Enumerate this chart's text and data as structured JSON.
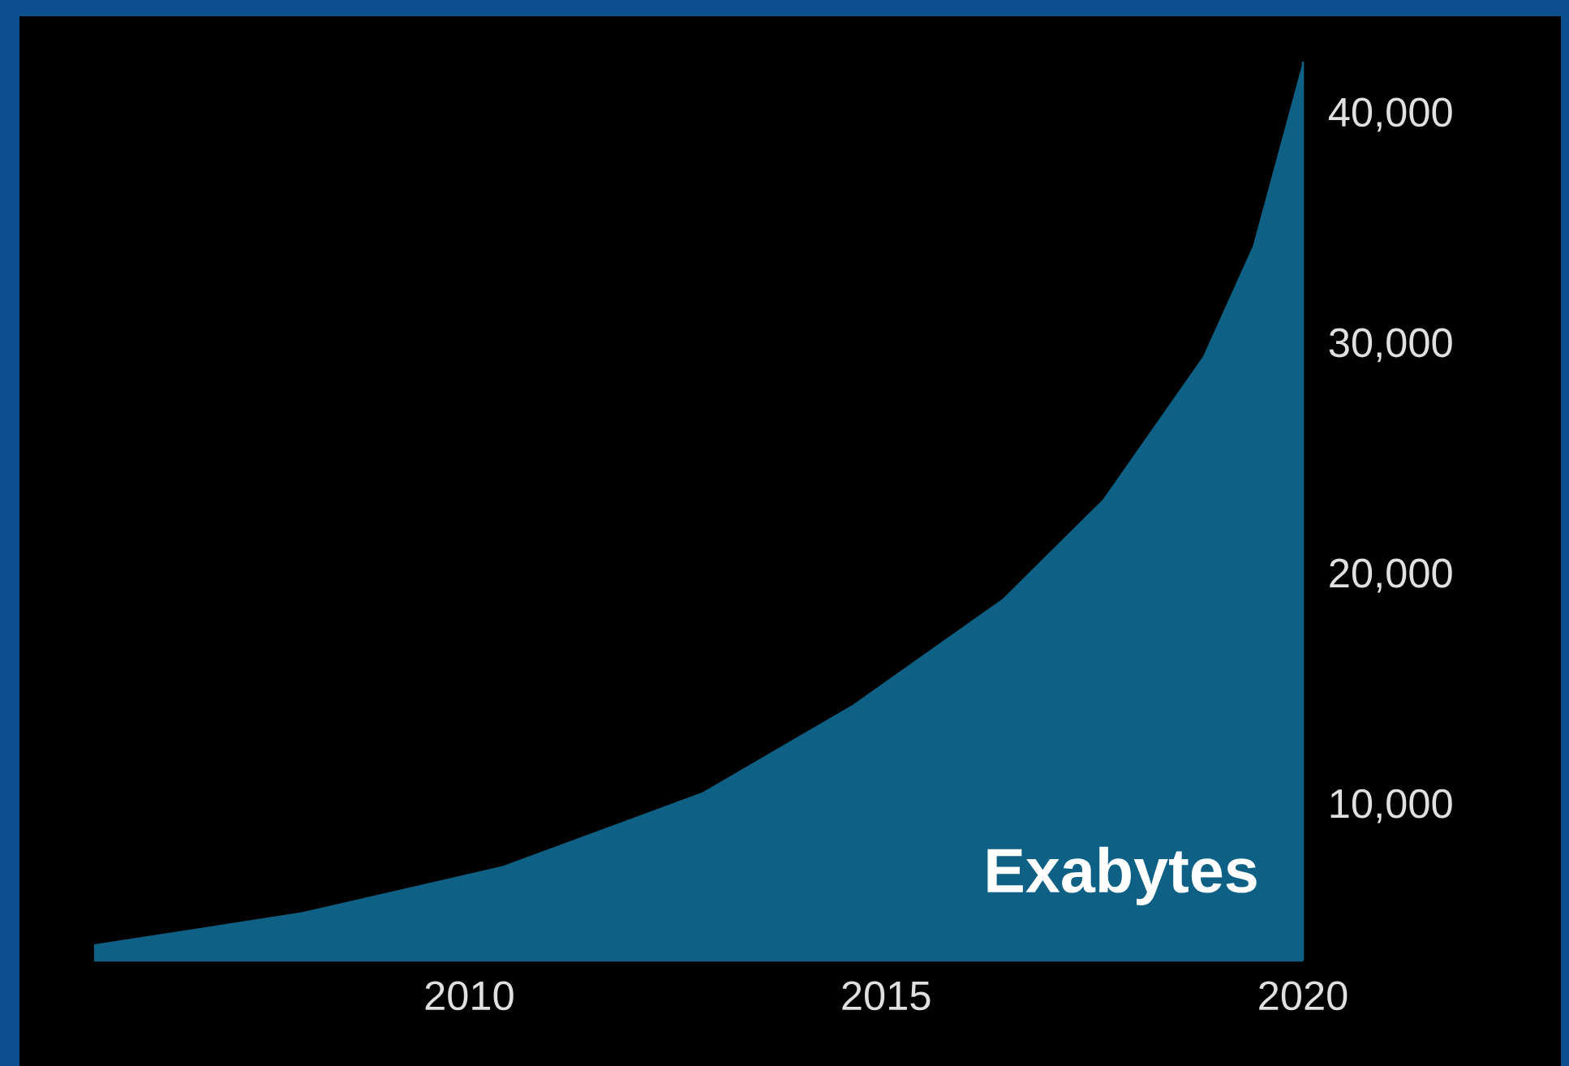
{
  "chart_data": {
    "type": "area",
    "x": [
      2005.5,
      2008,
      2010.4,
      2012.8,
      2014.6,
      2016.4,
      2017.6,
      2018.8,
      2019.4,
      2020
    ],
    "values": [
      4000,
      5400,
      7400,
      10600,
      14400,
      19000,
      23300,
      29500,
      34300,
      42300
    ],
    "color": "#0e6185",
    "xlim": [
      2005.5,
      2020
    ],
    "ylim": [
      3300,
      42300
    ],
    "xticks": [
      2010,
      2015,
      2020
    ],
    "yticks": [
      {
        "value": 10000,
        "label": "10,000"
      },
      {
        "value": 20000,
        "label": "20,000"
      },
      {
        "value": 30000,
        "label": "30,000"
      },
      {
        "value": 40000,
        "label": "40,000"
      }
    ],
    "annotations": [
      "Exabytes"
    ]
  }
}
